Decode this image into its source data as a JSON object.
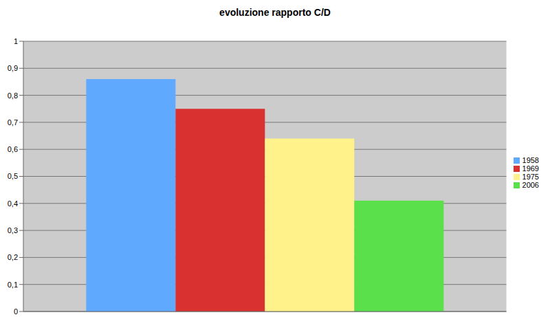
{
  "chart_data": {
    "type": "bar",
    "title": "evoluzione rapporto C/D",
    "categories": [
      null
    ],
    "series": [
      {
        "name": "1958",
        "color": "#5faaff",
        "values": [
          0.86
        ]
      },
      {
        "name": "1969",
        "color": "#d93030",
        "values": [
          0.75
        ]
      },
      {
        "name": "1975",
        "color": "#fff28a",
        "values": [
          0.64
        ]
      },
      {
        "name": "2006",
        "color": "#5ae04a",
        "values": [
          0.41
        ]
      }
    ],
    "ylim": [
      0,
      1
    ],
    "yticks": [
      0,
      {
        "value": 0.1,
        "label": "0,1"
      },
      {
        "value": 0.2,
        "label": "0,2"
      },
      {
        "value": 0.3,
        "label": "0,3"
      },
      {
        "value": 0.4,
        "label": "0,4"
      },
      {
        "value": 0.5,
        "label": "0,5"
      },
      {
        "value": 0.6,
        "label": "0,6"
      },
      {
        "value": 0.7,
        "label": "0,7"
      },
      {
        "value": 0.8,
        "label": "0,8"
      },
      {
        "value": 0.9,
        "label": "0,9"
      },
      1
    ],
    "grid": true,
    "legend": "right"
  }
}
